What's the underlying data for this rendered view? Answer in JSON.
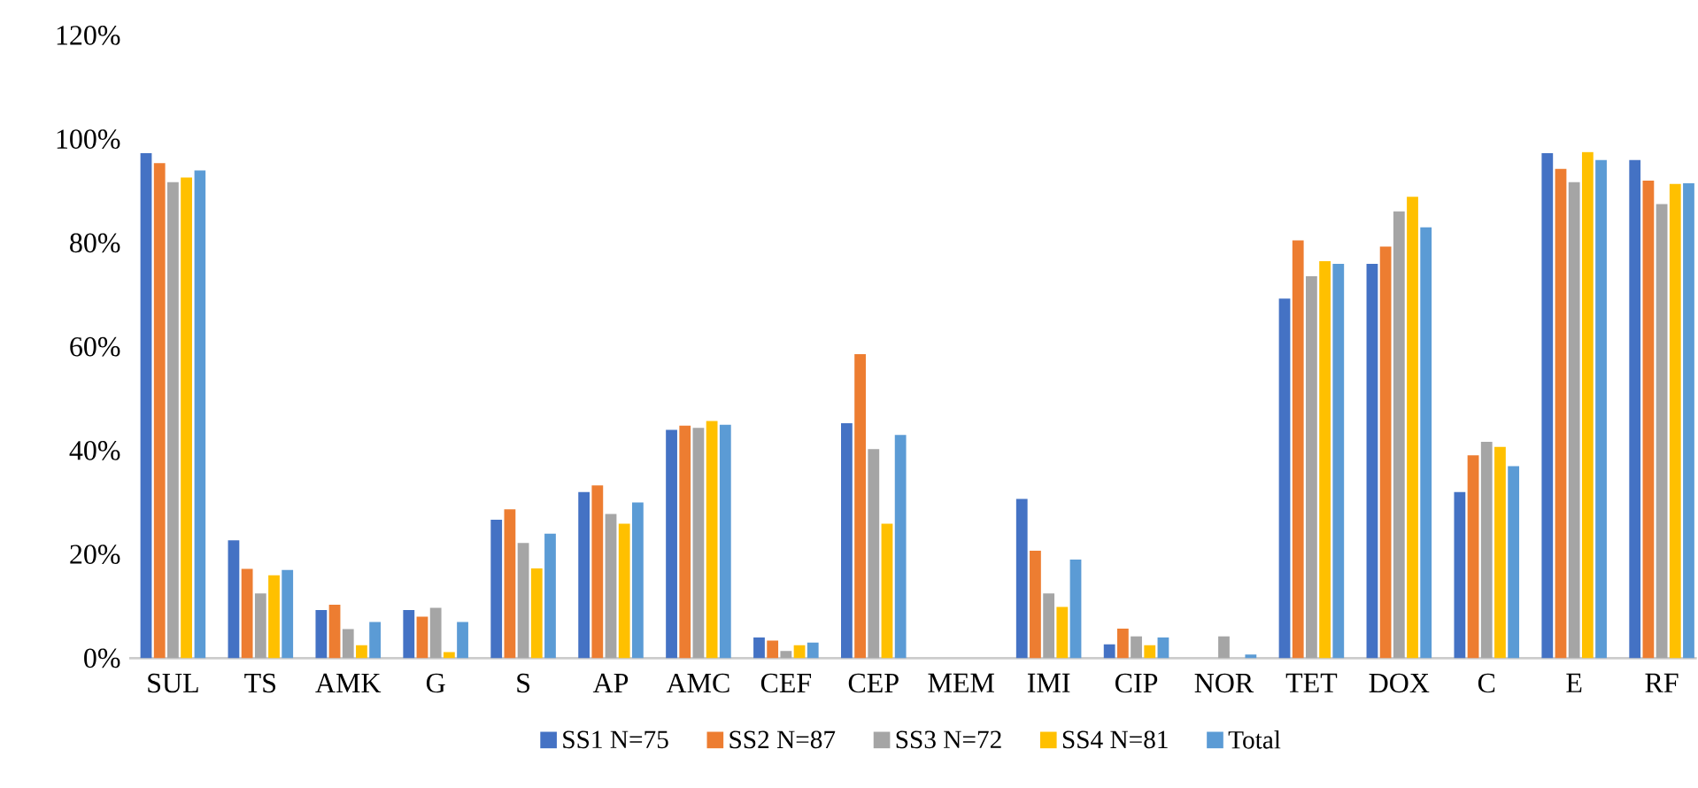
{
  "chart_data": {
    "type": "bar",
    "categories": [
      "SUL",
      "TS",
      "AMK",
      "G",
      "S",
      "AP",
      "AMC",
      "CEF",
      "CEP",
      "MEM",
      "IMI",
      "CIP",
      "NOR",
      "TET",
      "DOX",
      "C",
      "E",
      "RF"
    ],
    "series": [
      {
        "name": "SS1 N=75",
        "color": "#4472c4",
        "values": [
          97.3,
          22.7,
          9.3,
          9.3,
          26.7,
          32.0,
          44.0,
          4.0,
          45.3,
          0,
          30.7,
          2.7,
          0,
          69.3,
          76.0,
          32.0,
          97.3,
          96.0
        ]
      },
      {
        "name": "SS2 N=87",
        "color": "#ed7d31",
        "values": [
          95.4,
          17.2,
          10.3,
          8.0,
          28.7,
          33.3,
          44.8,
          3.4,
          58.6,
          0,
          20.7,
          5.7,
          0,
          80.5,
          79.3,
          39.1,
          94.3,
          92.0
        ]
      },
      {
        "name": "SS3 N=72",
        "color": "#a5a5a5",
        "values": [
          91.7,
          12.5,
          5.6,
          9.7,
          22.2,
          27.8,
          44.4,
          1.4,
          40.3,
          0,
          12.5,
          4.2,
          4.2,
          73.6,
          86.1,
          41.7,
          91.7,
          87.5
        ]
      },
      {
        "name": "SS4 N=81",
        "color": "#ffc000",
        "values": [
          92.6,
          16.0,
          2.5,
          1.2,
          17.3,
          25.9,
          45.7,
          2.5,
          25.9,
          0,
          9.9,
          2.5,
          0,
          76.5,
          88.9,
          40.7,
          97.5,
          91.4
        ]
      },
      {
        "name": "Total",
        "color": "#5b9bd5",
        "values": [
          94.0,
          17.0,
          7.0,
          7.0,
          24.0,
          30.0,
          45.0,
          3.0,
          43.0,
          0,
          19.0,
          4.0,
          0.7,
          76.0,
          83.0,
          37.0,
          96.0,
          91.5
        ]
      }
    ],
    "ylim": [
      0,
      120
    ],
    "yticks": [
      {
        "value": 0,
        "label": "0%"
      },
      {
        "value": 20,
        "label": "20%"
      },
      {
        "value": 40,
        "label": "40%"
      },
      {
        "value": 60,
        "label": "60%"
      },
      {
        "value": 80,
        "label": "80%"
      },
      {
        "value": 100,
        "label": "100%"
      },
      {
        "value": 120,
        "label": "120%"
      }
    ],
    "grid": false,
    "legend": "bottom"
  }
}
